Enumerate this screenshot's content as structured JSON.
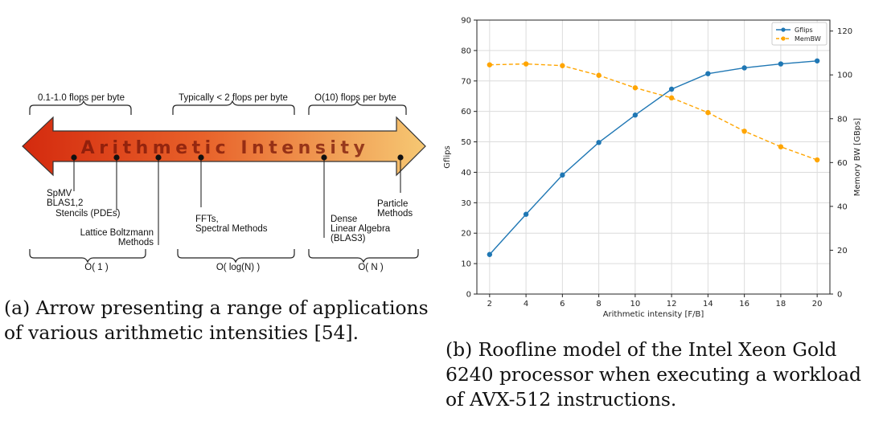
{
  "figure_a": {
    "arrow_label": "Arithmetic Intensity",
    "top_brackets": [
      "0.1-1.0 flops per byte",
      "Typically < 2 flops per byte",
      "O(10) flops per byte"
    ],
    "bottom_brackets": [
      "O( 1 )",
      "O( log(N) )",
      "O( N )"
    ],
    "markers": [
      {
        "lines": [
          "SpMV",
          "BLAS1,2"
        ]
      },
      {
        "lines": [
          "Stencils (PDEs)"
        ]
      },
      {
        "lines": [
          "Lattice Boltzmann",
          "Methods"
        ]
      },
      {
        "lines": [
          "FFTs,",
          "Spectral Methods"
        ]
      },
      {
        "lines": [
          "Dense",
          "Linear Algebra",
          "(BLAS3)"
        ]
      },
      {
        "lines": [
          "Particle",
          "Methods"
        ]
      }
    ],
    "gradient_colors": [
      "#d42a0e",
      "#f6c873"
    ]
  },
  "caption_a": [
    "(a) Arrow presenting a range of applications",
    "of various arithmetic intensities [54]."
  ],
  "caption_b": [
    "(b) Roofline model of the Intel Xeon Gold",
    "6240 processor when executing a workload",
    "of AVX-512 instructions."
  ],
  "chart_data": {
    "type": "line",
    "x": [
      2,
      4,
      6,
      8,
      10,
      12,
      14,
      16,
      18,
      20
    ],
    "xlabel": "Arithmetic intensity [F/B]",
    "ylabel": "Gflips",
    "y2label": "Memory BW [GBps]",
    "xlim": [
      1.3,
      20.7
    ],
    "ylim": [
      0,
      90
    ],
    "y2lim": [
      0,
      125
    ],
    "xticks": [
      2,
      4,
      6,
      8,
      10,
      12,
      14,
      16,
      18,
      20
    ],
    "yticks": [
      0,
      10,
      20,
      30,
      40,
      50,
      60,
      70,
      80,
      90
    ],
    "y2ticks": [
      0,
      20,
      40,
      60,
      80,
      100,
      120
    ],
    "grid": true,
    "legend_position": "top-right",
    "series": [
      {
        "name": "Gflips",
        "axis": "left",
        "color": "#1f77b4",
        "linestyle": "solid",
        "values": [
          13,
          26.2,
          39.1,
          49.8,
          58.8,
          67.3,
          72.4,
          74.3,
          75.6,
          76.6
        ]
      },
      {
        "name": "MemBW",
        "axis": "right",
        "color": "#ffa500",
        "linestyle": "dashed",
        "values": [
          104.6,
          105.0,
          104.2,
          99.8,
          94.1,
          89.5,
          82.8,
          74.3,
          67.2,
          61.2
        ]
      }
    ]
  }
}
